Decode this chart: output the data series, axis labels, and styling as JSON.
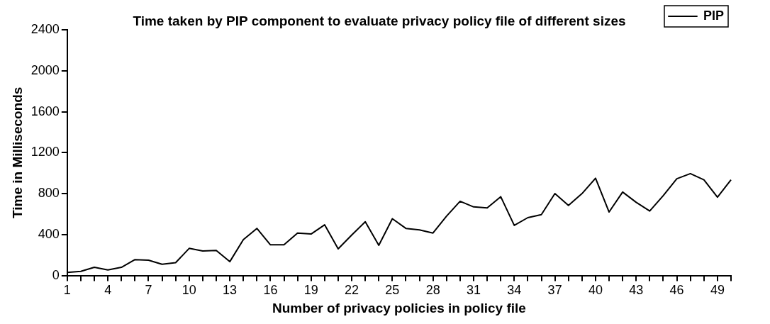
{
  "chart_data": {
    "type": "line",
    "title": "Time taken by PIP component to evaluate privacy policy file of different sizes",
    "xlabel": "Number of privacy policies in policy file",
    "ylabel": "Time in Milliseconds",
    "categories": [
      "1",
      null,
      null,
      "4",
      null,
      null,
      "7",
      null,
      null,
      "10",
      null,
      null,
      "13",
      null,
      null,
      "16",
      null,
      null,
      "19",
      null,
      null,
      "22",
      null,
      null,
      "25",
      null,
      null,
      "28",
      null,
      null,
      "31",
      null,
      null,
      "34",
      null,
      null,
      "37",
      null,
      null,
      "40",
      null,
      null,
      "43",
      null,
      null,
      "46",
      null,
      null,
      "49",
      null
    ],
    "series": [
      {
        "name": "PIP",
        "color": "#000000",
        "values": [
          30,
          40,
          80,
          55,
          80,
          155,
          150,
          110,
          125,
          265,
          240,
          245,
          135,
          350,
          460,
          300,
          300,
          415,
          405,
          495,
          260,
          395,
          525,
          295,
          555,
          460,
          445,
          415,
          580,
          725,
          670,
          660,
          770,
          490,
          565,
          595,
          800,
          685,
          800,
          950,
          620,
          815,
          715,
          630,
          780,
          945,
          995,
          935,
          765,
          935
        ]
      }
    ],
    "ylim": [
      0,
      2400
    ],
    "yticks": [
      0,
      400,
      800,
      1200,
      1600,
      2000,
      2400
    ],
    "grid": false,
    "legend": "top right",
    "marker": "none",
    "line_style": "solid"
  }
}
